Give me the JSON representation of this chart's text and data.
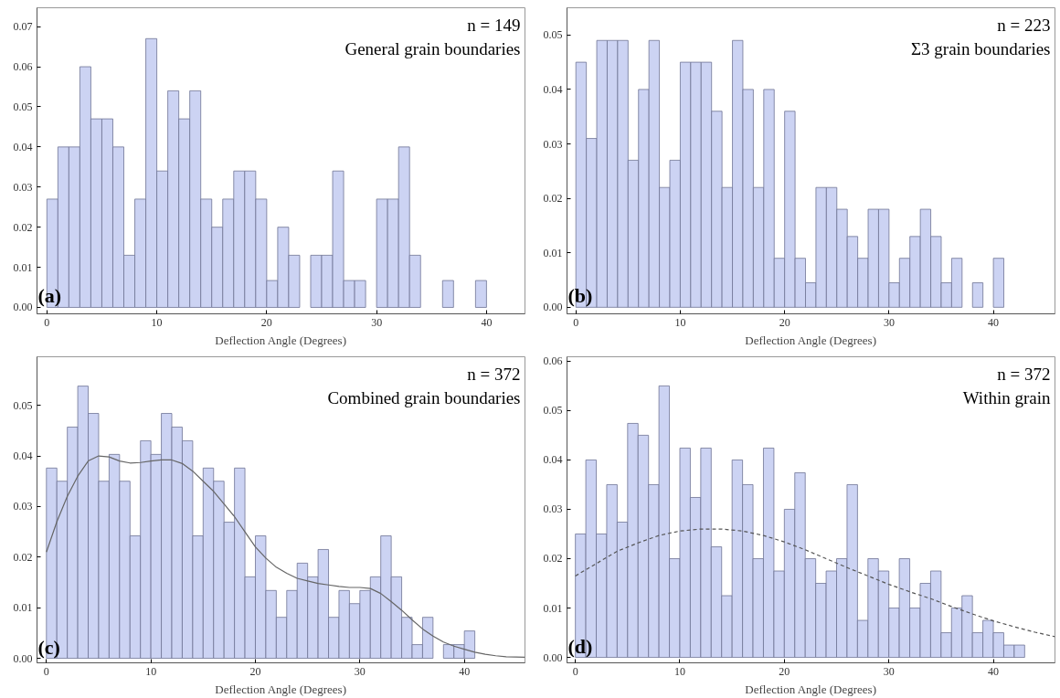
{
  "chart_data": [
    {
      "type": "histogram",
      "xlabel": "Deflection Angle (Degrees)",
      "annotations": [
        "n = 149",
        "General grain boundaries",
        "(a)"
      ],
      "color": "#ccd3f3",
      "grid": false,
      "bins": [
        0,
        1,
        2,
        3,
        4,
        5,
        6,
        7,
        8,
        9,
        10,
        11,
        12,
        13,
        14,
        15,
        16,
        17,
        18,
        19,
        20,
        21,
        22,
        23,
        24,
        25,
        26,
        27,
        28,
        29,
        30,
        31,
        32,
        33,
        34,
        35,
        36,
        37,
        38,
        39,
        40
      ],
      "values": [
        0.027,
        0.04,
        0.04,
        0.06,
        0.047,
        0.047,
        0.04,
        0.013,
        0.027,
        0.067,
        0.034,
        0.054,
        0.047,
        0.054,
        0.027,
        0.02,
        0.027,
        0.034,
        0.034,
        0.027,
        0.0067,
        0.02,
        0.013,
        0,
        0.013,
        0.013,
        0.034,
        0.0067,
        0.0067,
        0,
        0.027,
        0.027,
        0.04,
        0.013,
        0,
        0,
        0.0067,
        0,
        0,
        0.0067
      ],
      "xlim": [
        -0.9,
        43.5
      ],
      "xticks": [
        0,
        10,
        20,
        30,
        40
      ],
      "ylim": [
        -0.0016,
        0.0747
      ],
      "yticks": [
        {
          "value": 0,
          "label": "0.00"
        },
        {
          "value": 0.01,
          "label": "0.01"
        },
        {
          "value": 0.02,
          "label": "0.02"
        },
        {
          "value": 0.03,
          "label": "0.03"
        },
        {
          "value": 0.04,
          "label": "0.04"
        },
        {
          "value": 0.05,
          "label": "0.05"
        },
        {
          "value": 0.06,
          "label": "0.06"
        },
        {
          "value": 0.07,
          "label": "0.07"
        }
      ]
    },
    {
      "type": "histogram",
      "xlabel": "Deflection Angle (Degrees)",
      "annotations": [
        "n = 223",
        "Σ3 grain boundaries",
        "(b)"
      ],
      "color": "#ccd3f3",
      "grid": false,
      "bins": [
        0,
        1,
        2,
        3,
        4,
        5,
        6,
        7,
        8,
        9,
        10,
        11,
        12,
        13,
        14,
        15,
        16,
        17,
        18,
        19,
        20,
        21,
        22,
        23,
        24,
        25,
        26,
        27,
        28,
        29,
        30,
        31,
        32,
        33,
        34,
        35,
        36,
        37,
        38,
        39,
        40,
        41
      ],
      "values": [
        0.045,
        0.031,
        0.049,
        0.049,
        0.049,
        0.027,
        0.04,
        0.049,
        0.022,
        0.027,
        0.045,
        0.045,
        0.045,
        0.036,
        0.022,
        0.049,
        0.04,
        0.022,
        0.04,
        0.009,
        0.036,
        0.009,
        0.0045,
        0.022,
        0.022,
        0.018,
        0.013,
        0.009,
        0.018,
        0.018,
        0.0045,
        0.009,
        0.013,
        0.018,
        0.013,
        0.0045,
        0.009,
        0,
        0.0045,
        0,
        0.009
      ],
      "xlim": [
        -0.85,
        45.9
      ],
      "xticks": [
        0,
        10,
        20,
        30,
        40
      ],
      "ylim": [
        -0.0012,
        0.055
      ],
      "yticks": [
        {
          "value": 0,
          "label": "0.00"
        },
        {
          "value": 0.01,
          "label": "0.01"
        },
        {
          "value": 0.02,
          "label": "0.02"
        },
        {
          "value": 0.03,
          "label": "0.03"
        },
        {
          "value": 0.04,
          "label": "0.04"
        },
        {
          "value": 0.05,
          "label": "0.05"
        }
      ]
    },
    {
      "type": "histogram",
      "xlabel": "Deflection Angle (Degrees)",
      "annotations": [
        "n = 372",
        "Combined grain boundaries",
        "(c)"
      ],
      "color": "#ccd3f3",
      "grid": false,
      "bins": [
        0,
        1,
        2,
        3,
        4,
        5,
        6,
        7,
        8,
        9,
        10,
        11,
        12,
        13,
        14,
        15,
        16,
        17,
        18,
        19,
        20,
        21,
        22,
        23,
        24,
        25,
        26,
        27,
        28,
        29,
        30,
        31,
        32,
        33,
        34,
        35,
        36,
        37,
        38,
        39,
        40,
        41
      ],
      "values": [
        0.0376,
        0.035,
        0.0457,
        0.0538,
        0.0484,
        0.035,
        0.0403,
        0.035,
        0.0242,
        0.043,
        0.0403,
        0.0484,
        0.0457,
        0.043,
        0.0242,
        0.0376,
        0.035,
        0.0269,
        0.0376,
        0.0161,
        0.0242,
        0.0134,
        0.0081,
        0.0134,
        0.0188,
        0.0161,
        0.0215,
        0.0081,
        0.0134,
        0.0108,
        0.0134,
        0.0161,
        0.0242,
        0.0161,
        0.0081,
        0.0027,
        0.0081,
        0,
        0.0027,
        0.0027,
        0.0054
      ],
      "series": [
        {
          "type": "line",
          "color": "#666666",
          "line_style": "solid",
          "x": [
            0,
            1,
            2,
            3,
            4,
            5,
            6,
            7,
            8,
            9,
            10,
            11,
            12,
            13,
            14,
            15,
            16,
            17,
            18,
            19,
            20,
            21,
            22,
            23,
            24,
            25,
            26,
            27,
            28,
            29,
            30,
            31,
            32,
            33,
            34,
            35,
            36,
            37,
            38,
            39,
            40,
            41,
            42,
            43,
            44,
            45.8
          ],
          "values": [
            0.021,
            0.027,
            0.032,
            0.036,
            0.039,
            0.04,
            0.0398,
            0.039,
            0.0386,
            0.0387,
            0.039,
            0.0392,
            0.0392,
            0.0385,
            0.037,
            0.035,
            0.033,
            0.0305,
            0.028,
            0.025,
            0.022,
            0.0198,
            0.018,
            0.0168,
            0.0158,
            0.0153,
            0.0148,
            0.0145,
            0.0142,
            0.014,
            0.014,
            0.0138,
            0.0128,
            0.0112,
            0.0095,
            0.0076,
            0.0058,
            0.0044,
            0.0032,
            0.0024,
            0.0018,
            0.0012,
            0.0008,
            0.0005,
            0.0003,
            0.0002
          ]
        }
      ],
      "xlim": [
        -0.9,
        45.8
      ],
      "xticks": [
        0,
        10,
        20,
        30,
        40
      ],
      "ylim": [
        -0.0009,
        0.0596
      ],
      "yticks": [
        {
          "value": 0,
          "label": "0.00"
        },
        {
          "value": 0.01,
          "label": "0.01"
        },
        {
          "value": 0.02,
          "label": "0.02"
        },
        {
          "value": 0.03,
          "label": "0.03"
        },
        {
          "value": 0.04,
          "label": "0.04"
        },
        {
          "value": 0.05,
          "label": "0.05"
        }
      ]
    },
    {
      "type": "histogram",
      "xlabel": "Deflection Angle (Degrees)",
      "annotations": [
        "n = 372",
        "Within grain",
        "(d)"
      ],
      "color": "#ccd3f3",
      "grid": false,
      "bins": [
        0,
        1,
        2,
        3,
        4,
        5,
        6,
        7,
        8,
        9,
        10,
        11,
        12,
        13,
        14,
        15,
        16,
        17,
        18,
        19,
        20,
        21,
        22,
        23,
        24,
        25,
        26,
        27,
        28,
        29,
        30,
        31,
        32,
        33,
        34,
        35,
        36,
        37,
        38,
        39,
        40,
        41,
        42,
        43
      ],
      "values": [
        0.025,
        0.04,
        0.025,
        0.035,
        0.0274,
        0.0474,
        0.045,
        0.035,
        0.055,
        0.02,
        0.0424,
        0.0324,
        0.0424,
        0.0224,
        0.0125,
        0.04,
        0.035,
        0.02,
        0.0424,
        0.0175,
        0.03,
        0.0374,
        0.02,
        0.015,
        0.0175,
        0.02,
        0.035,
        0.0075,
        0.02,
        0.0175,
        0.01,
        0.02,
        0.01,
        0.015,
        0.0175,
        0.005,
        0.01,
        0.0125,
        0.005,
        0.0075,
        0.005,
        0.0025,
        0.0025
      ],
      "series": [
        {
          "type": "line",
          "color": "#555555",
          "line_style": "dashed",
          "x": [
            0,
            2,
            4,
            6,
            8,
            10,
            12,
            14,
            16,
            18,
            20,
            22,
            24,
            26,
            28,
            30,
            32,
            34,
            36,
            38,
            40,
            42,
            44,
            45.9
          ],
          "values": [
            0.0165,
            0.019,
            0.0215,
            0.0232,
            0.0247,
            0.0256,
            0.026,
            0.026,
            0.0256,
            0.0247,
            0.0234,
            0.0218,
            0.02,
            0.0182,
            0.0165,
            0.0148,
            0.0133,
            0.0119,
            0.0103,
            0.0088,
            0.0074,
            0.0062,
            0.0051,
            0.0042
          ]
        }
      ],
      "xlim": [
        -0.8,
        45.9
      ],
      "xticks": [
        0,
        10,
        20,
        30,
        40
      ],
      "ylim": [
        -0.0011,
        0.0609
      ],
      "yticks": [
        {
          "value": 0,
          "label": "0.00"
        },
        {
          "value": 0.01,
          "label": "0.01"
        },
        {
          "value": 0.02,
          "label": "0.02"
        },
        {
          "value": 0.03,
          "label": "0.03"
        },
        {
          "value": 0.04,
          "label": "0.04"
        },
        {
          "value": 0.05,
          "label": "0.05"
        },
        {
          "value": 0.06,
          "label": "0.06"
        }
      ]
    }
  ]
}
